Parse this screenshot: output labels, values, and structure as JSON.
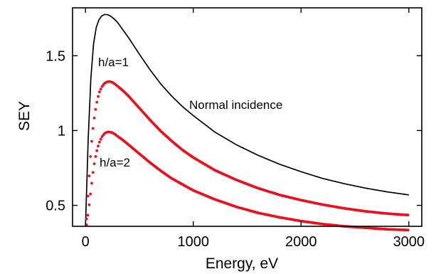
{
  "chart_data": {
    "type": "scatter",
    "xlabel": "Energy, eV",
    "ylabel": "SEY",
    "xlim": [
      -120,
      3120
    ],
    "ylim": [
      0.36,
      1.82
    ],
    "x_ticks": [
      0,
      1000,
      2000,
      3000
    ],
    "x_tick_labels": [
      "0",
      "1000",
      "2000",
      "3000"
    ],
    "y_ticks": [
      0.5,
      1.0,
      1.5
    ],
    "y_tick_labels": [
      "0.5",
      "1",
      "1.5"
    ],
    "grid": false,
    "annotations": [
      "Normal incidence",
      "h/a=1",
      "h/a=2"
    ],
    "series": [
      {
        "name": "Normal incidence",
        "style": "line",
        "color": "#000000",
        "x": [
          0,
          25,
          50,
          75,
          100,
          125,
          150,
          175,
          200,
          225,
          250,
          275,
          300,
          350,
          400,
          450,
          500,
          600,
          700,
          800,
          900,
          1000,
          1200,
          1400,
          1600,
          1800,
          2000,
          2200,
          2400,
          2600,
          2800,
          3000
        ],
        "y": [
          0.36,
          0.94,
          1.35,
          1.58,
          1.69,
          1.74,
          1.765,
          1.775,
          1.775,
          1.768,
          1.755,
          1.74,
          1.72,
          1.67,
          1.62,
          1.565,
          1.51,
          1.405,
          1.31,
          1.23,
          1.16,
          1.1,
          0.99,
          0.905,
          0.835,
          0.775,
          0.725,
          0.68,
          0.645,
          0.615,
          0.59,
          0.57
        ]
      },
      {
        "name": "h/a=1",
        "style": "dots",
        "color": "#e8121e",
        "x": [
          10,
          25,
          50,
          75,
          100,
          125,
          150,
          175,
          200,
          225,
          250,
          275,
          300,
          350,
          400,
          450,
          500,
          600,
          700,
          800,
          900,
          1000,
          1200,
          1400,
          1600,
          1800,
          2000,
          2200,
          2400,
          2600,
          2800,
          3000
        ],
        "y": [
          0.41,
          0.6,
          0.87,
          1.05,
          1.17,
          1.25,
          1.29,
          1.315,
          1.325,
          1.328,
          1.322,
          1.31,
          1.295,
          1.265,
          1.23,
          1.19,
          1.15,
          1.07,
          0.995,
          0.93,
          0.87,
          0.82,
          0.735,
          0.67,
          0.615,
          0.57,
          0.535,
          0.505,
          0.48,
          0.46,
          0.445,
          0.435
        ]
      },
      {
        "name": "h/a=2",
        "style": "dots",
        "color": "#e8121e",
        "x": [
          10,
          25,
          50,
          75,
          100,
          125,
          150,
          175,
          200,
          225,
          250,
          275,
          300,
          350,
          400,
          450,
          500,
          600,
          700,
          800,
          900,
          1000,
          1200,
          1400,
          1600,
          1800,
          2000,
          2200,
          2400,
          2600,
          2800,
          3000
        ],
        "y": [
          0.37,
          0.45,
          0.6,
          0.75,
          0.85,
          0.915,
          0.955,
          0.98,
          0.99,
          0.99,
          0.985,
          0.975,
          0.96,
          0.935,
          0.905,
          0.875,
          0.845,
          0.785,
          0.73,
          0.68,
          0.64,
          0.6,
          0.54,
          0.49,
          0.45,
          0.42,
          0.395,
          0.375,
          0.36,
          0.35,
          0.34,
          0.335
        ]
      }
    ]
  }
}
